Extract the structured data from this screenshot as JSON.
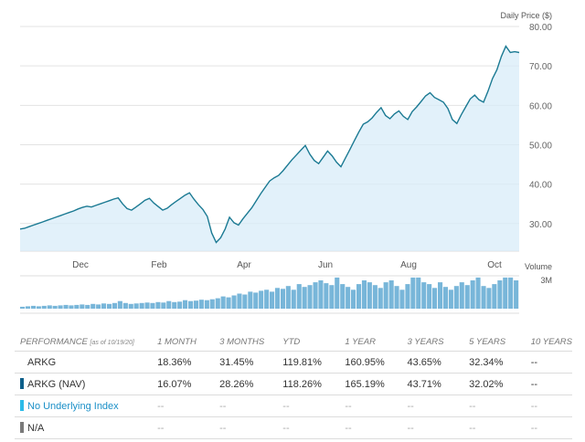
{
  "chart_data": {
    "type": "line",
    "ylabel": "Daily Price ($)",
    "ylim": [
      23,
      80
    ],
    "yticks": [
      30,
      40,
      50,
      60,
      70,
      80
    ],
    "ytick_labels": [
      "30.00",
      "40.00",
      "50.00",
      "60.00",
      "70.00",
      "80.00"
    ],
    "xticks": [
      "Dec",
      "Feb",
      "Apr",
      "Jun",
      "Aug",
      "Oct"
    ],
    "grid": true,
    "line_color": "#1b7a93",
    "fill_color": "#d8ecf8",
    "price": [
      28.6,
      28.8,
      29.2,
      29.6,
      30.0,
      30.4,
      30.8,
      31.2,
      31.6,
      32.0,
      32.4,
      32.8,
      33.2,
      33.7,
      34.1,
      34.4,
      34.2,
      34.6,
      35.0,
      35.4,
      35.8,
      36.2,
      36.5,
      35.0,
      33.8,
      33.4,
      34.2,
      35.0,
      35.9,
      36.4,
      35.2,
      34.3,
      33.4,
      33.9,
      34.8,
      35.6,
      36.4,
      37.2,
      37.8,
      36.2,
      34.8,
      33.6,
      31.8,
      27.6,
      25.2,
      26.4,
      28.6,
      31.6,
      30.2,
      29.6,
      31.2,
      32.6,
      34.0,
      35.8,
      37.6,
      39.2,
      40.8,
      41.6,
      42.2,
      43.4,
      44.8,
      46.2,
      47.4,
      48.6,
      49.8,
      47.6,
      46.0,
      45.2,
      46.8,
      48.4,
      47.2,
      45.6,
      44.4,
      46.6,
      48.8,
      51.0,
      53.2,
      55.2,
      55.8,
      56.8,
      58.2,
      59.4,
      57.4,
      56.6,
      57.8,
      58.6,
      57.2,
      56.4,
      58.4,
      59.6,
      61.0,
      62.4,
      63.2,
      62.0,
      61.4,
      60.8,
      59.2,
      56.4,
      55.4,
      57.6,
      59.6,
      61.6,
      62.6,
      61.4,
      60.8,
      63.6,
      66.8,
      69.0,
      72.4,
      75.0,
      73.4,
      73.6,
      73.4
    ],
    "volume": [
      0.2,
      0.25,
      0.3,
      0.25,
      0.3,
      0.35,
      0.3,
      0.35,
      0.4,
      0.35,
      0.4,
      0.45,
      0.4,
      0.5,
      0.45,
      0.55,
      0.5,
      0.6,
      0.8,
      0.6,
      0.5,
      0.55,
      0.6,
      0.65,
      0.6,
      0.7,
      0.65,
      0.8,
      0.7,
      0.75,
      0.9,
      0.8,
      0.85,
      0.95,
      0.9,
      1.0,
      1.1,
      1.3,
      1.2,
      1.4,
      1.6,
      1.5,
      1.8,
      1.7,
      1.9,
      2.0,
      1.8,
      2.2,
      2.1,
      2.4,
      2.0,
      2.6,
      2.3,
      2.5,
      2.8,
      3.0,
      2.7,
      2.5,
      3.3,
      2.6,
      2.3,
      2.0,
      2.6,
      3.0,
      2.8,
      2.5,
      2.2,
      2.8,
      3.0,
      2.4,
      2.0,
      2.6,
      3.6,
      3.3,
      2.8,
      2.6,
      2.2,
      2.8,
      2.3,
      2.0,
      2.4,
      2.8,
      2.5,
      3.0,
      3.4,
      2.4,
      2.2,
      2.6,
      3.0,
      3.8,
      3.4,
      3.0
    ],
    "volume_label": "Volume",
    "volume_tick": "3M",
    "volume_max": 3
  },
  "performance": {
    "header": {
      "title": "PERFORMANCE",
      "as_of": "[as of 10/19/20]",
      "cols": [
        "1 MONTH",
        "3 MONTHS",
        "YTD",
        "1 YEAR",
        "3 YEARS",
        "5 YEARS",
        "10 YEARS"
      ]
    },
    "rows": [
      {
        "name": "ARKG",
        "values": [
          "18.36%",
          "31.45%",
          "119.81%",
          "160.95%",
          "43.65%",
          "32.34%",
          "--"
        ]
      },
      {
        "name": "ARKG (NAV)",
        "values": [
          "16.07%",
          "28.26%",
          "118.26%",
          "165.19%",
          "43.71%",
          "32.02%",
          "--"
        ]
      },
      {
        "name": "No Underlying Index",
        "values": [
          "--",
          "--",
          "--",
          "--",
          "--",
          "--",
          "--"
        ]
      },
      {
        "name": "N/A",
        "values": [
          "--",
          "--",
          "--",
          "--",
          "--",
          "--",
          "--"
        ]
      }
    ],
    "marker_colors": [
      "",
      "#0d5f8a",
      "#2bbbe8",
      "#7a7a7a"
    ]
  }
}
